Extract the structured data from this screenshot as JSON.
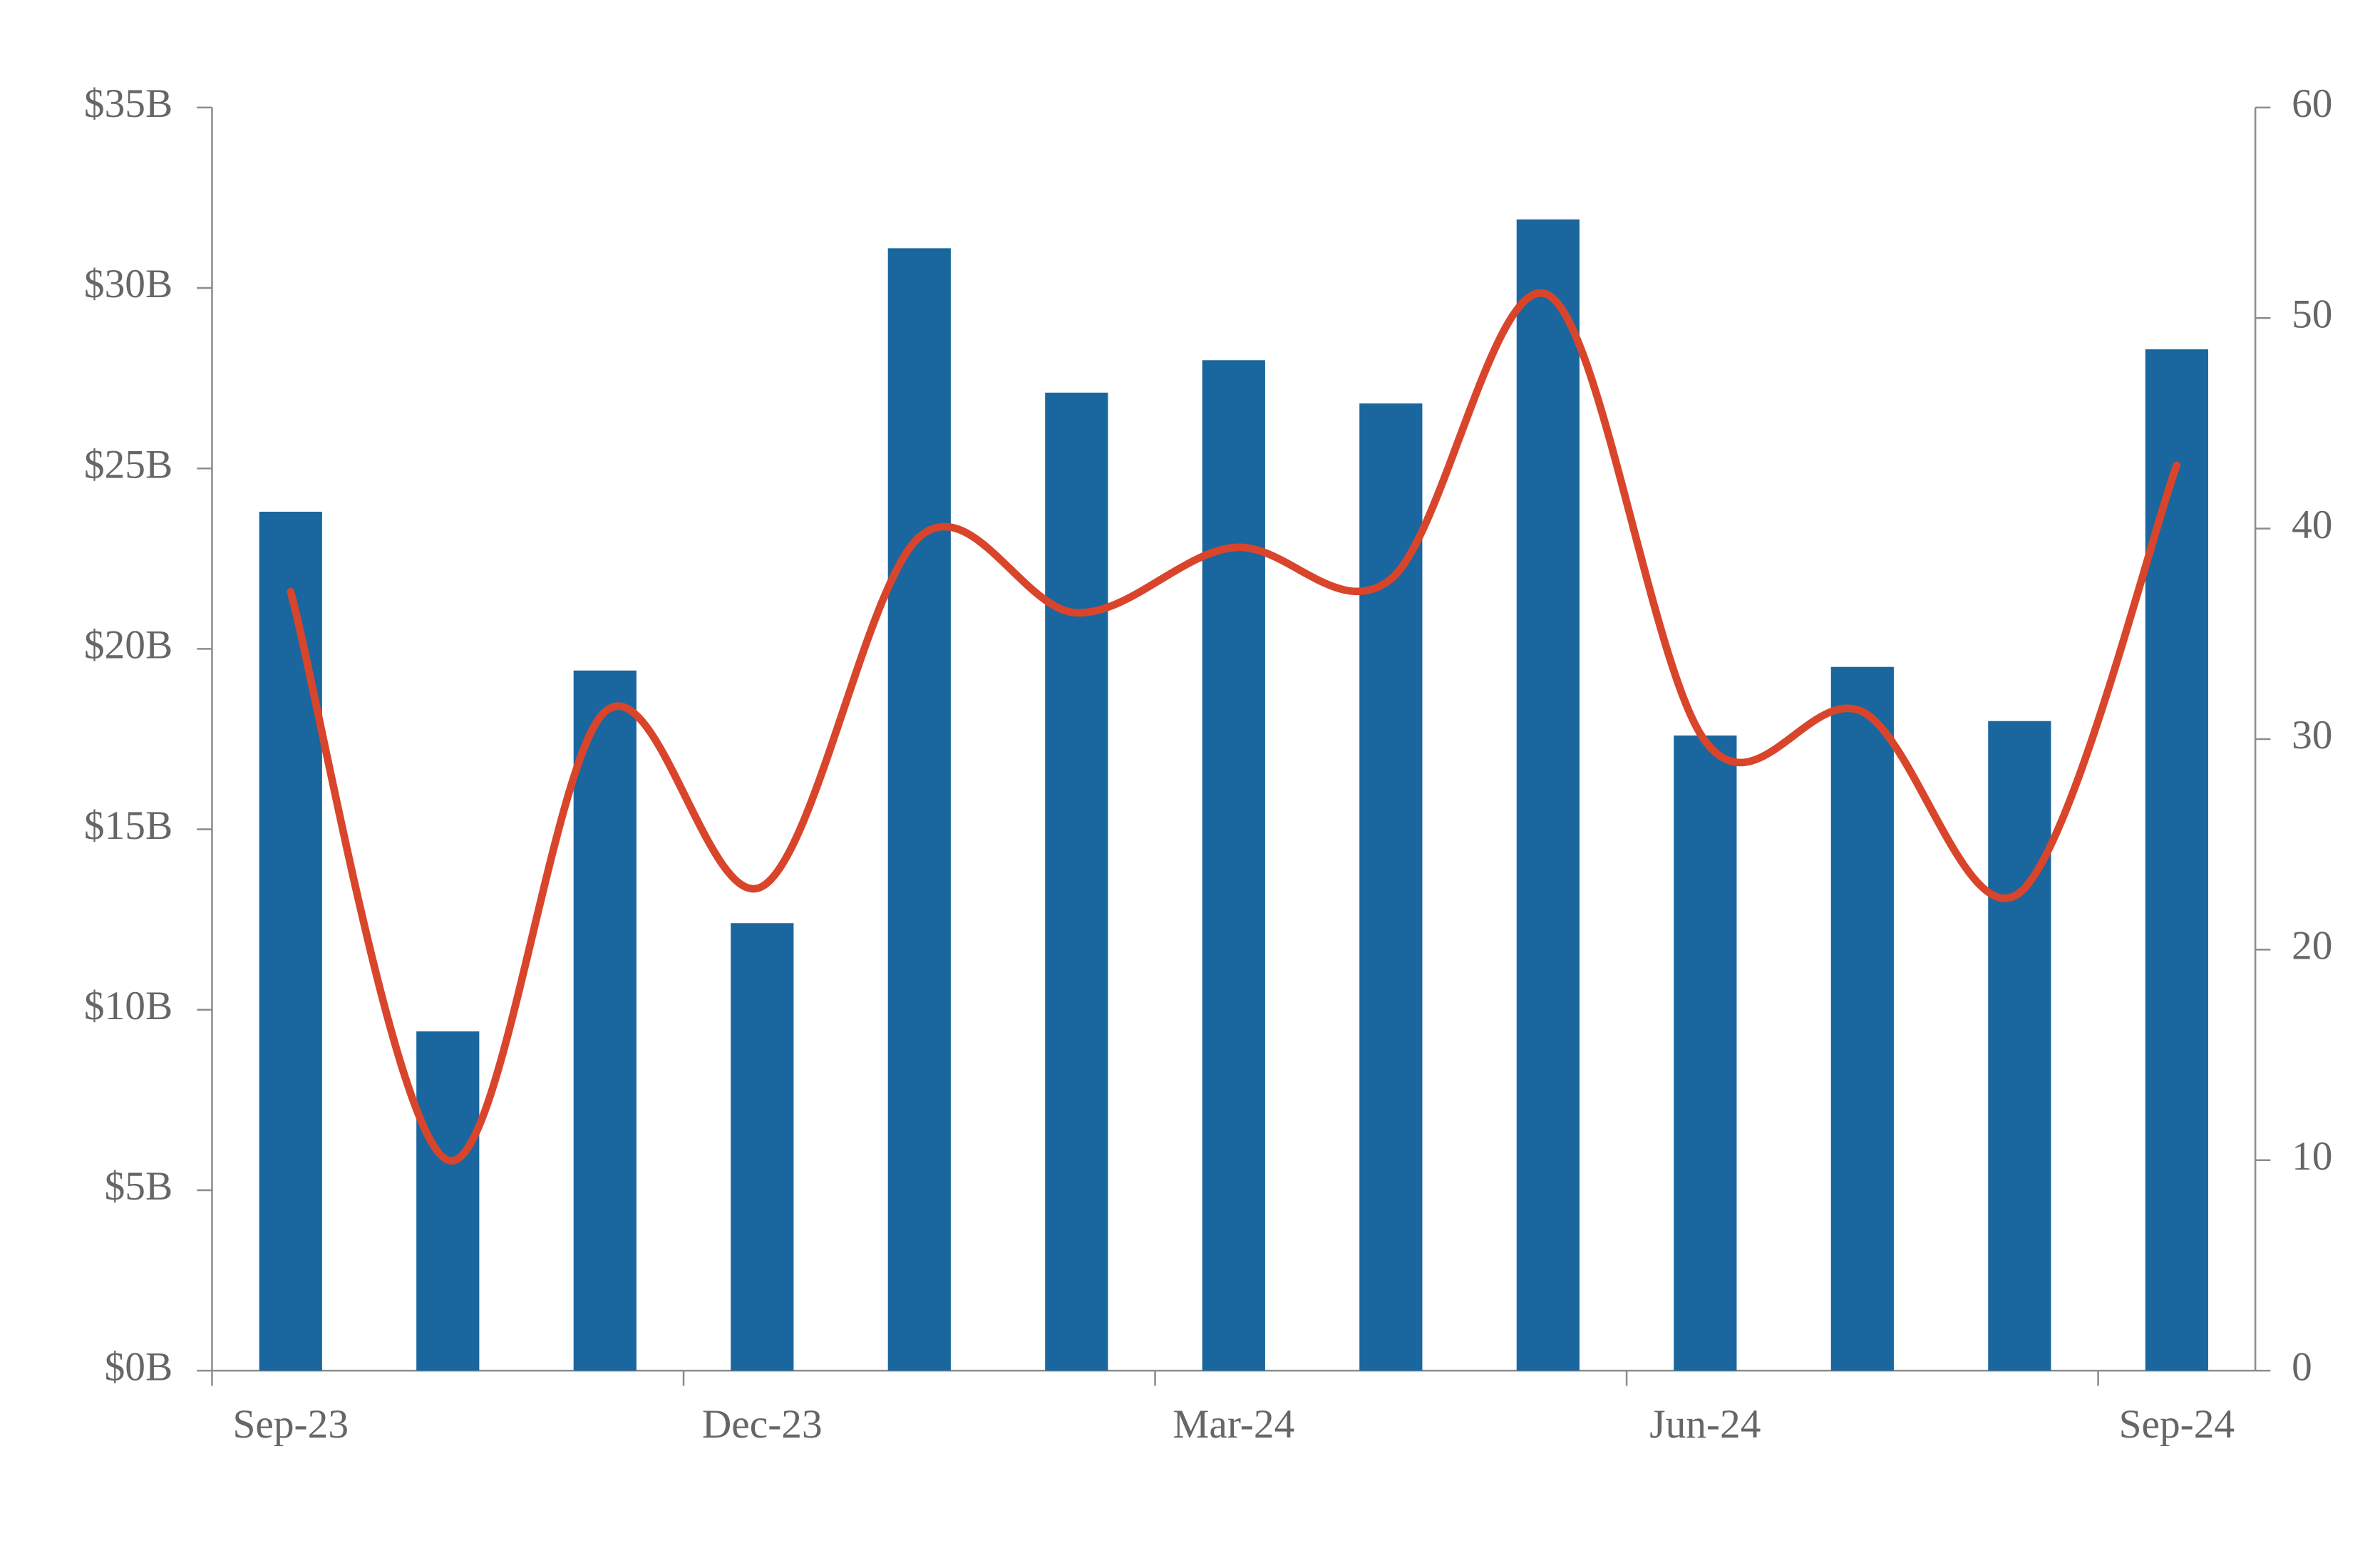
{
  "chart_data": {
    "type": "bar-line",
    "categories": [
      "Sep-23",
      null,
      null,
      "Dec-23",
      null,
      null,
      "Mar-24",
      null,
      null,
      "Jun-24",
      null,
      null,
      "Sep-24"
    ],
    "series": [
      {
        "type": "bar",
        "color": "#1a669e",
        "values": [
          23.8,
          9.4,
          19.4,
          12.4,
          31.1,
          27.1,
          28.0,
          26.8,
          31.9,
          17.6,
          19.5,
          18.0,
          28.3
        ]
      },
      {
        "type": "line",
        "axis": "y2",
        "color": "#d9452b",
        "values": [
          37,
          10,
          31.3,
          23,
          39.6,
          36,
          39.1,
          37.6,
          51.1,
          29.9,
          31.3,
          22.7,
          43
        ]
      }
    ],
    "ylim": [
      0,
      35
    ],
    "yticks": [
      {
        "value": 0,
        "label": "$0B"
      },
      {
        "value": 5,
        "label": "$5B"
      },
      {
        "value": 10,
        "label": "$10B"
      },
      {
        "value": 15,
        "label": "$15B"
      },
      {
        "value": 20,
        "label": "$20B"
      },
      {
        "value": 25,
        "label": "$25B"
      },
      {
        "value": 30,
        "label": "$30B"
      },
      {
        "value": 35,
        "label": "$35B"
      }
    ],
    "y2lim": [
      0,
      60
    ],
    "y2ticks": [
      0,
      10,
      20,
      30,
      40,
      50,
      60
    ],
    "grid": false
  }
}
